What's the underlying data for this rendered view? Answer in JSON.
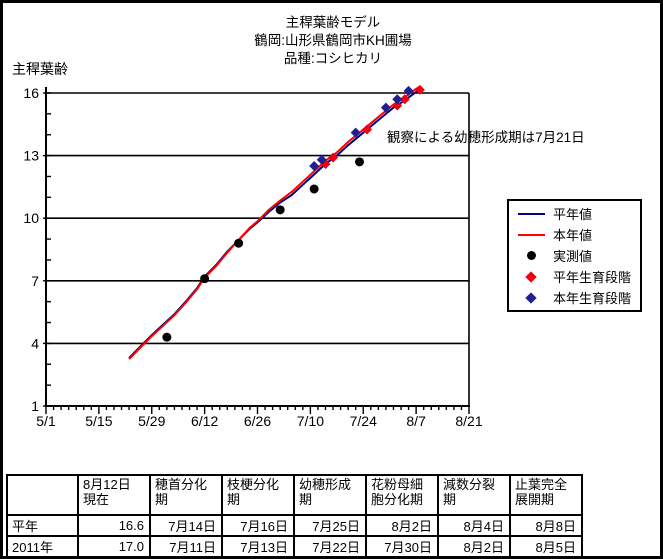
{
  "title": {
    "line1": "主稈葉齢モデル",
    "line2": "鶴岡:山形県鶴岡市KH圃場",
    "line3": "品種:コシヒカリ"
  },
  "chart_data": {
    "type": "line",
    "y_axis_label": "主稈葉齢",
    "ylim": [
      1,
      16
    ],
    "y_ticks": [
      1,
      4,
      7,
      10,
      13,
      16
    ],
    "x_ticks": [
      "5/1",
      "5/15",
      "5/29",
      "6/12",
      "6/26",
      "7/10",
      "7/24",
      "8/7",
      "8/21"
    ],
    "grid": true,
    "legend_position": "right",
    "annotation": {
      "text": "観察による幼穂形成期は7月21日",
      "color": "#0000D0"
    },
    "series": [
      {
        "name": "平年値",
        "key": "normal-year",
        "type": "line",
        "color": "#000080",
        "points": [
          [
            "5/23",
            3.3
          ],
          [
            "5/26",
            3.85
          ],
          [
            "5/29",
            4.4
          ],
          [
            "6/1",
            4.9
          ],
          [
            "6/4",
            5.4
          ],
          [
            "6/7",
            6.0
          ],
          [
            "6/10",
            6.65
          ],
          [
            "6/12",
            7.2
          ],
          [
            "6/15",
            7.75
          ],
          [
            "6/18",
            8.4
          ],
          [
            "6/21",
            8.95
          ],
          [
            "6/24",
            9.5
          ],
          [
            "6/26",
            9.8
          ],
          [
            "6/29",
            10.3
          ],
          [
            "7/2",
            10.75
          ],
          [
            "7/5",
            11.1
          ],
          [
            "7/8",
            11.6
          ],
          [
            "7/11",
            12.1
          ],
          [
            "7/14",
            12.6
          ],
          [
            "7/17",
            13.0
          ],
          [
            "7/20",
            13.5
          ],
          [
            "7/23",
            13.95
          ],
          [
            "7/26",
            14.4
          ],
          [
            "7/29",
            14.85
          ],
          [
            "8/1",
            15.3
          ],
          [
            "8/4",
            15.65
          ],
          [
            "8/7",
            16.05
          ],
          [
            "8/8",
            16.15
          ]
        ]
      },
      {
        "name": "本年値",
        "key": "this-year",
        "type": "line",
        "color": "#FF0000",
        "points": [
          [
            "5/23",
            3.25
          ],
          [
            "5/26",
            3.8
          ],
          [
            "5/29",
            4.35
          ],
          [
            "6/1",
            4.85
          ],
          [
            "6/4",
            5.35
          ],
          [
            "6/7",
            5.95
          ],
          [
            "6/10",
            6.6
          ],
          [
            "6/12",
            7.15
          ],
          [
            "6/15",
            7.7
          ],
          [
            "6/18",
            8.35
          ],
          [
            "6/21",
            8.95
          ],
          [
            "6/24",
            9.55
          ],
          [
            "6/26",
            9.85
          ],
          [
            "6/29",
            10.4
          ],
          [
            "7/2",
            10.85
          ],
          [
            "7/5",
            11.25
          ],
          [
            "7/8",
            11.75
          ],
          [
            "7/11",
            12.25
          ],
          [
            "7/14",
            12.75
          ],
          [
            "7/17",
            13.15
          ],
          [
            "7/20",
            13.65
          ],
          [
            "7/23",
            14.1
          ],
          [
            "7/26",
            14.55
          ],
          [
            "7/29",
            15.0
          ],
          [
            "8/1",
            15.45
          ],
          [
            "8/4",
            15.8
          ],
          [
            "8/7",
            16.2
          ],
          [
            "8/8",
            16.3
          ]
        ]
      },
      {
        "name": "実測値",
        "key": "observed",
        "type": "scatter",
        "marker": "circle",
        "color": "#000000",
        "points": [
          [
            "6/2",
            4.3
          ],
          [
            "6/12",
            7.1
          ],
          [
            "6/21",
            8.8
          ],
          [
            "7/2",
            10.4
          ],
          [
            "7/11",
            11.4
          ],
          [
            "7/23",
            12.7
          ]
        ]
      },
      {
        "name": "平年生育段階",
        "key": "normal-stage",
        "type": "scatter",
        "marker": "diamond",
        "color": "#EE0011",
        "points": [
          [
            "7/14",
            12.6
          ],
          [
            "7/16",
            12.9
          ],
          [
            "7/25",
            14.25
          ],
          [
            "8/2",
            15.4
          ],
          [
            "8/4",
            15.7
          ],
          [
            "8/8",
            16.15
          ]
        ]
      },
      {
        "name": "本年生育段階",
        "key": "this-year-stage",
        "type": "scatter",
        "marker": "diamond",
        "color": "#202090",
        "points": [
          [
            "7/11",
            12.5
          ],
          [
            "7/13",
            12.8
          ],
          [
            "7/22",
            14.1
          ],
          [
            "7/30",
            15.3
          ],
          [
            "8/2",
            15.7
          ],
          [
            "8/5",
            16.1
          ]
        ]
      }
    ]
  },
  "table": {
    "col_headers": [
      "8月12日\n現在",
      "穂首分化\n期",
      "枝梗分化\n期",
      "幼穂形成\n期",
      "花粉母細\n胞分化期",
      "減数分裂\n期",
      "止葉完全\n展開期"
    ],
    "rows": [
      {
        "label": "平年",
        "values": [
          "16.6",
          "7月14日",
          "7月16日",
          "7月25日",
          "8月2日",
          "8月4日",
          "8月8日"
        ]
      },
      {
        "label": "2011年",
        "values": [
          "17.0",
          "7月11日",
          "7月13日",
          "7月22日",
          "7月30日",
          "8月2日",
          "8月5日"
        ]
      }
    ]
  }
}
